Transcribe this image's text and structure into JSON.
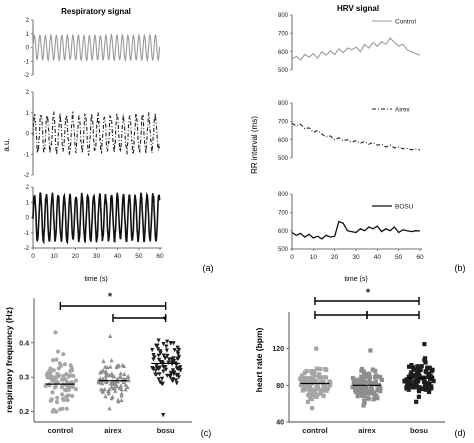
{
  "colors": {
    "control_line": "#9a9a9a",
    "airex_line": "#222222",
    "bosu_line": "#111111",
    "control_points": "#a6a6a6",
    "airex_points": "#8e8e8e",
    "bosu_points": "#1e1e1e",
    "axis": "#444444"
  },
  "chart_data": [
    {
      "type": "line",
      "panel_label": "(a)",
      "title": "Respiratory signal",
      "ylabel": "a.u.",
      "xlabel": "time (s)",
      "xlim": [
        0,
        60
      ],
      "x_ticks": [
        0,
        10,
        20,
        30,
        40,
        50,
        60
      ],
      "y_ticks": [
        -2,
        -1,
        0,
        1,
        2
      ],
      "subplots": [
        {
          "name": "control",
          "style": "solid-grey",
          "period_s": 2.6,
          "amplitude": 0.9,
          "noise": 0.1
        },
        {
          "name": "airex",
          "style": "dash-dot",
          "period_s": 3.0,
          "amplitude": 0.85,
          "noise": 0.45
        },
        {
          "name": "bosu",
          "style": "solid-thick",
          "period_s": 2.8,
          "amplitude": 1.5,
          "noise": 0.35
        }
      ]
    },
    {
      "type": "line",
      "panel_label": "(b)",
      "title": "HRV signal",
      "ylabel": "RR interval (ms)",
      "xlabel": "time (s)",
      "xlim": [
        0,
        60
      ],
      "x_ticks": [
        0,
        10,
        20,
        30,
        40,
        50,
        60
      ],
      "series": [
        {
          "name": "Control",
          "ylim": [
            500,
            800
          ],
          "y_ticks": [
            500,
            600,
            700,
            800
          ],
          "x": [
            0,
            2,
            4,
            6,
            8,
            10,
            12,
            14,
            16,
            18,
            20,
            22,
            24,
            26,
            28,
            30,
            32,
            34,
            36,
            38,
            40,
            42,
            44,
            46,
            48,
            50,
            52,
            54,
            56,
            58,
            60
          ],
          "values": [
            560,
            575,
            555,
            585,
            570,
            590,
            565,
            600,
            580,
            605,
            585,
            615,
            595,
            620,
            610,
            625,
            600,
            640,
            620,
            650,
            630,
            655,
            640,
            675,
            650,
            630,
            640,
            610,
            600,
            590,
            580
          ]
        },
        {
          "name": "Airex",
          "ylim": [
            500,
            800
          ],
          "y_ticks": [
            500,
            600,
            700,
            800
          ],
          "x": [
            0,
            2,
            4,
            6,
            8,
            10,
            12,
            14,
            16,
            18,
            20,
            22,
            24,
            26,
            28,
            30,
            32,
            34,
            36,
            38,
            40,
            42,
            44,
            46,
            48,
            50,
            52,
            54,
            56,
            58,
            60
          ],
          "values": [
            690,
            675,
            685,
            660,
            665,
            640,
            650,
            630,
            615,
            620,
            600,
            610,
            595,
            600,
            585,
            595,
            580,
            590,
            575,
            585,
            570,
            575,
            560,
            570,
            555,
            560,
            550,
            552,
            545,
            548,
            545
          ]
        },
        {
          "name": "BOSU",
          "ylim": [
            500,
            800
          ],
          "y_ticks": [
            500,
            600,
            700,
            800
          ],
          "x": [
            0,
            2,
            4,
            6,
            8,
            10,
            12,
            14,
            16,
            18,
            20,
            22,
            24,
            26,
            28,
            30,
            32,
            34,
            36,
            38,
            40,
            42,
            44,
            46,
            48,
            50,
            52,
            54,
            56,
            58,
            60
          ],
          "values": [
            590,
            575,
            585,
            565,
            580,
            560,
            570,
            555,
            575,
            565,
            570,
            650,
            640,
            600,
            595,
            590,
            610,
            600,
            620,
            610,
            625,
            595,
            610,
            600,
            620,
            590,
            605,
            600,
            595,
            600,
            598
          ]
        }
      ]
    },
    {
      "type": "scatter",
      "panel_label": "(c)",
      "ylabel": "respiratory frequency (Hz)",
      "categories": [
        "control",
        "airex",
        "bosu"
      ],
      "ylim": [
        0.17,
        0.53
      ],
      "y_ticks": [
        0.2,
        0.3,
        0.4
      ],
      "significance": "*",
      "series": [
        {
          "name": "control",
          "marker": "circle",
          "center": 0.28,
          "min": 0.2,
          "max": 0.43,
          "n": 90
        },
        {
          "name": "airex",
          "marker": "triangle-up",
          "center": 0.29,
          "min": 0.21,
          "max": 0.42,
          "n": 90
        },
        {
          "name": "bosu",
          "marker": "triangle-down",
          "center": 0.34,
          "min": 0.19,
          "max": 0.47,
          "n": 90
        }
      ]
    },
    {
      "type": "scatter",
      "panel_label": "(d)",
      "ylabel": "heart rate (bpm)",
      "categories": [
        "control",
        "airex",
        "bosu"
      ],
      "ylim": [
        40,
        160
      ],
      "y_ticks": [
        40,
        80,
        120
      ],
      "significance": "*",
      "series": [
        {
          "name": "control",
          "marker": "square",
          "center": 82,
          "min": 55,
          "max": 120,
          "n": 90
        },
        {
          "name": "airex",
          "marker": "square",
          "center": 80,
          "min": 58,
          "max": 118,
          "n": 90
        },
        {
          "name": "bosu",
          "marker": "square",
          "center": 88,
          "min": 62,
          "max": 125,
          "n": 90
        }
      ]
    }
  ]
}
